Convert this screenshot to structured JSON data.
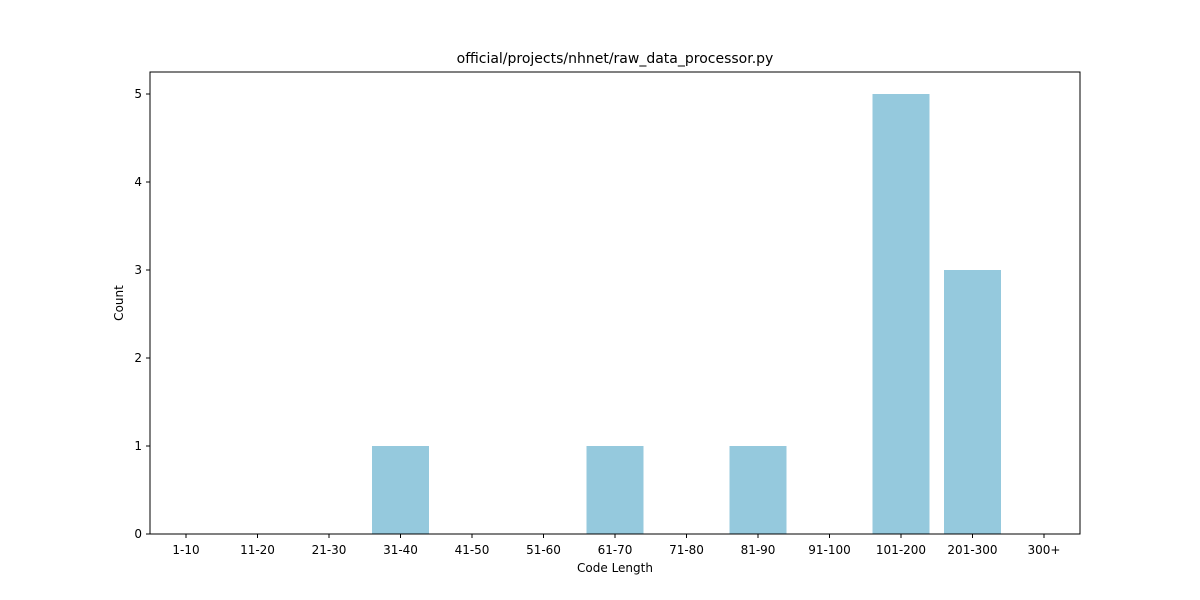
{
  "chart_data": {
    "type": "bar",
    "title": "official/projects/nhnet/raw_data_processor.py",
    "xlabel": "Code Length",
    "ylabel": "Count",
    "categories": [
      "1-10",
      "11-20",
      "21-30",
      "31-40",
      "41-50",
      "51-60",
      "61-70",
      "71-80",
      "81-90",
      "91-100",
      "101-200",
      "201-300",
      "300+"
    ],
    "values": [
      0,
      0,
      0,
      1,
      0,
      0,
      1,
      0,
      1,
      0,
      5,
      3,
      0
    ],
    "ylim": [
      0,
      5.25
    ],
    "yticks": [
      0,
      1,
      2,
      3,
      4,
      5
    ],
    "grid": false,
    "bar_color": "#95c9dd"
  }
}
